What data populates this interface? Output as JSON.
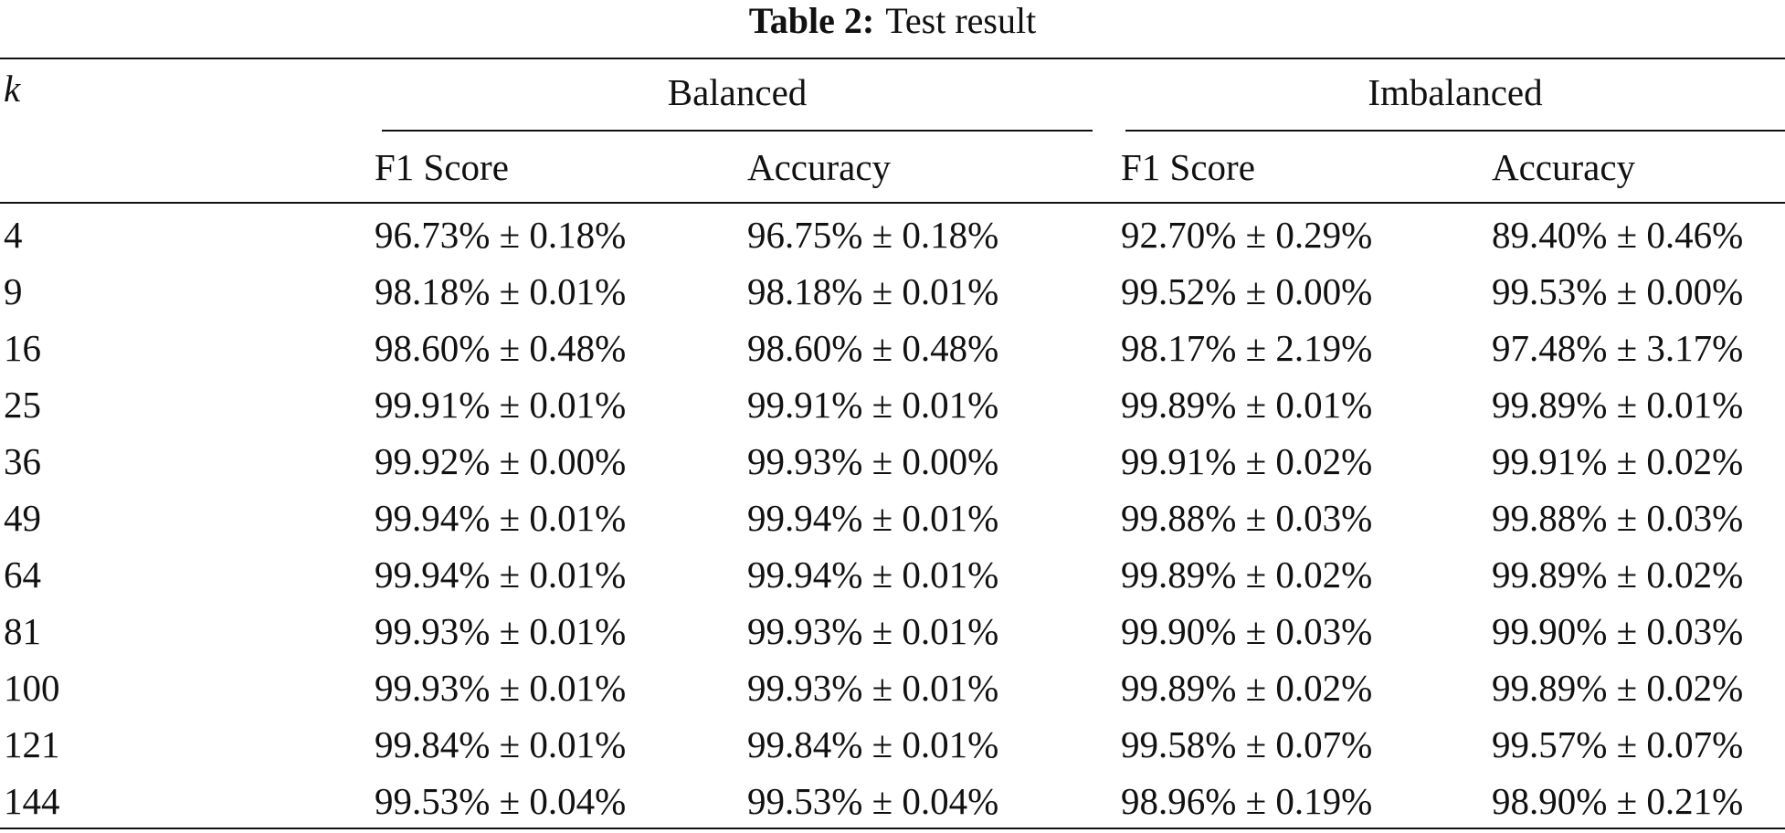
{
  "caption": {
    "label": "Table 2:",
    "text": "Test result"
  },
  "table": {
    "k_header": "k",
    "groups": [
      "Balanced",
      "Imbalanced"
    ],
    "subheaders": [
      "F1 Score",
      "Accuracy",
      "F1 Score",
      "Accuracy"
    ],
    "rows": [
      [
        "4",
        "96.73% ± 0.18%",
        "96.75% ± 0.18%",
        "92.70% ± 0.29%",
        "89.40% ± 0.46%"
      ],
      [
        "9",
        "98.18% ± 0.01%",
        "98.18% ± 0.01%",
        "99.52% ± 0.00%",
        "99.53% ± 0.00%"
      ],
      [
        "16",
        "98.60% ± 0.48%",
        "98.60% ± 0.48%",
        "98.17% ± 2.19%",
        "97.48% ± 3.17%"
      ],
      [
        "25",
        "99.91% ± 0.01%",
        "99.91% ± 0.01%",
        "99.89% ± 0.01%",
        "99.89% ± 0.01%"
      ],
      [
        "36",
        "99.92% ± 0.00%",
        "99.93% ± 0.00%",
        "99.91% ± 0.02%",
        "99.91% ± 0.02%"
      ],
      [
        "49",
        "99.94% ± 0.01%",
        "99.94% ± 0.01%",
        "99.88% ± 0.03%",
        "99.88% ± 0.03%"
      ],
      [
        "64",
        "99.94% ± 0.01%",
        "99.94% ± 0.01%",
        "99.89% ± 0.02%",
        "99.89% ± 0.02%"
      ],
      [
        "81",
        "99.93% ± 0.01%",
        "99.93% ± 0.01%",
        "99.90% ± 0.03%",
        "99.90% ± 0.03%"
      ],
      [
        "100",
        "99.93% ± 0.01%",
        "99.93% ± 0.01%",
        "99.89% ± 0.02%",
        "99.89% ± 0.02%"
      ],
      [
        "121",
        "99.84% ± 0.01%",
        "99.84% ± 0.01%",
        "99.58% ± 0.07%",
        "99.57% ± 0.07%"
      ],
      [
        "144",
        "99.53% ± 0.04%",
        "99.53% ± 0.04%",
        "98.96% ± 0.19%",
        "98.90% ± 0.21%"
      ]
    ]
  }
}
